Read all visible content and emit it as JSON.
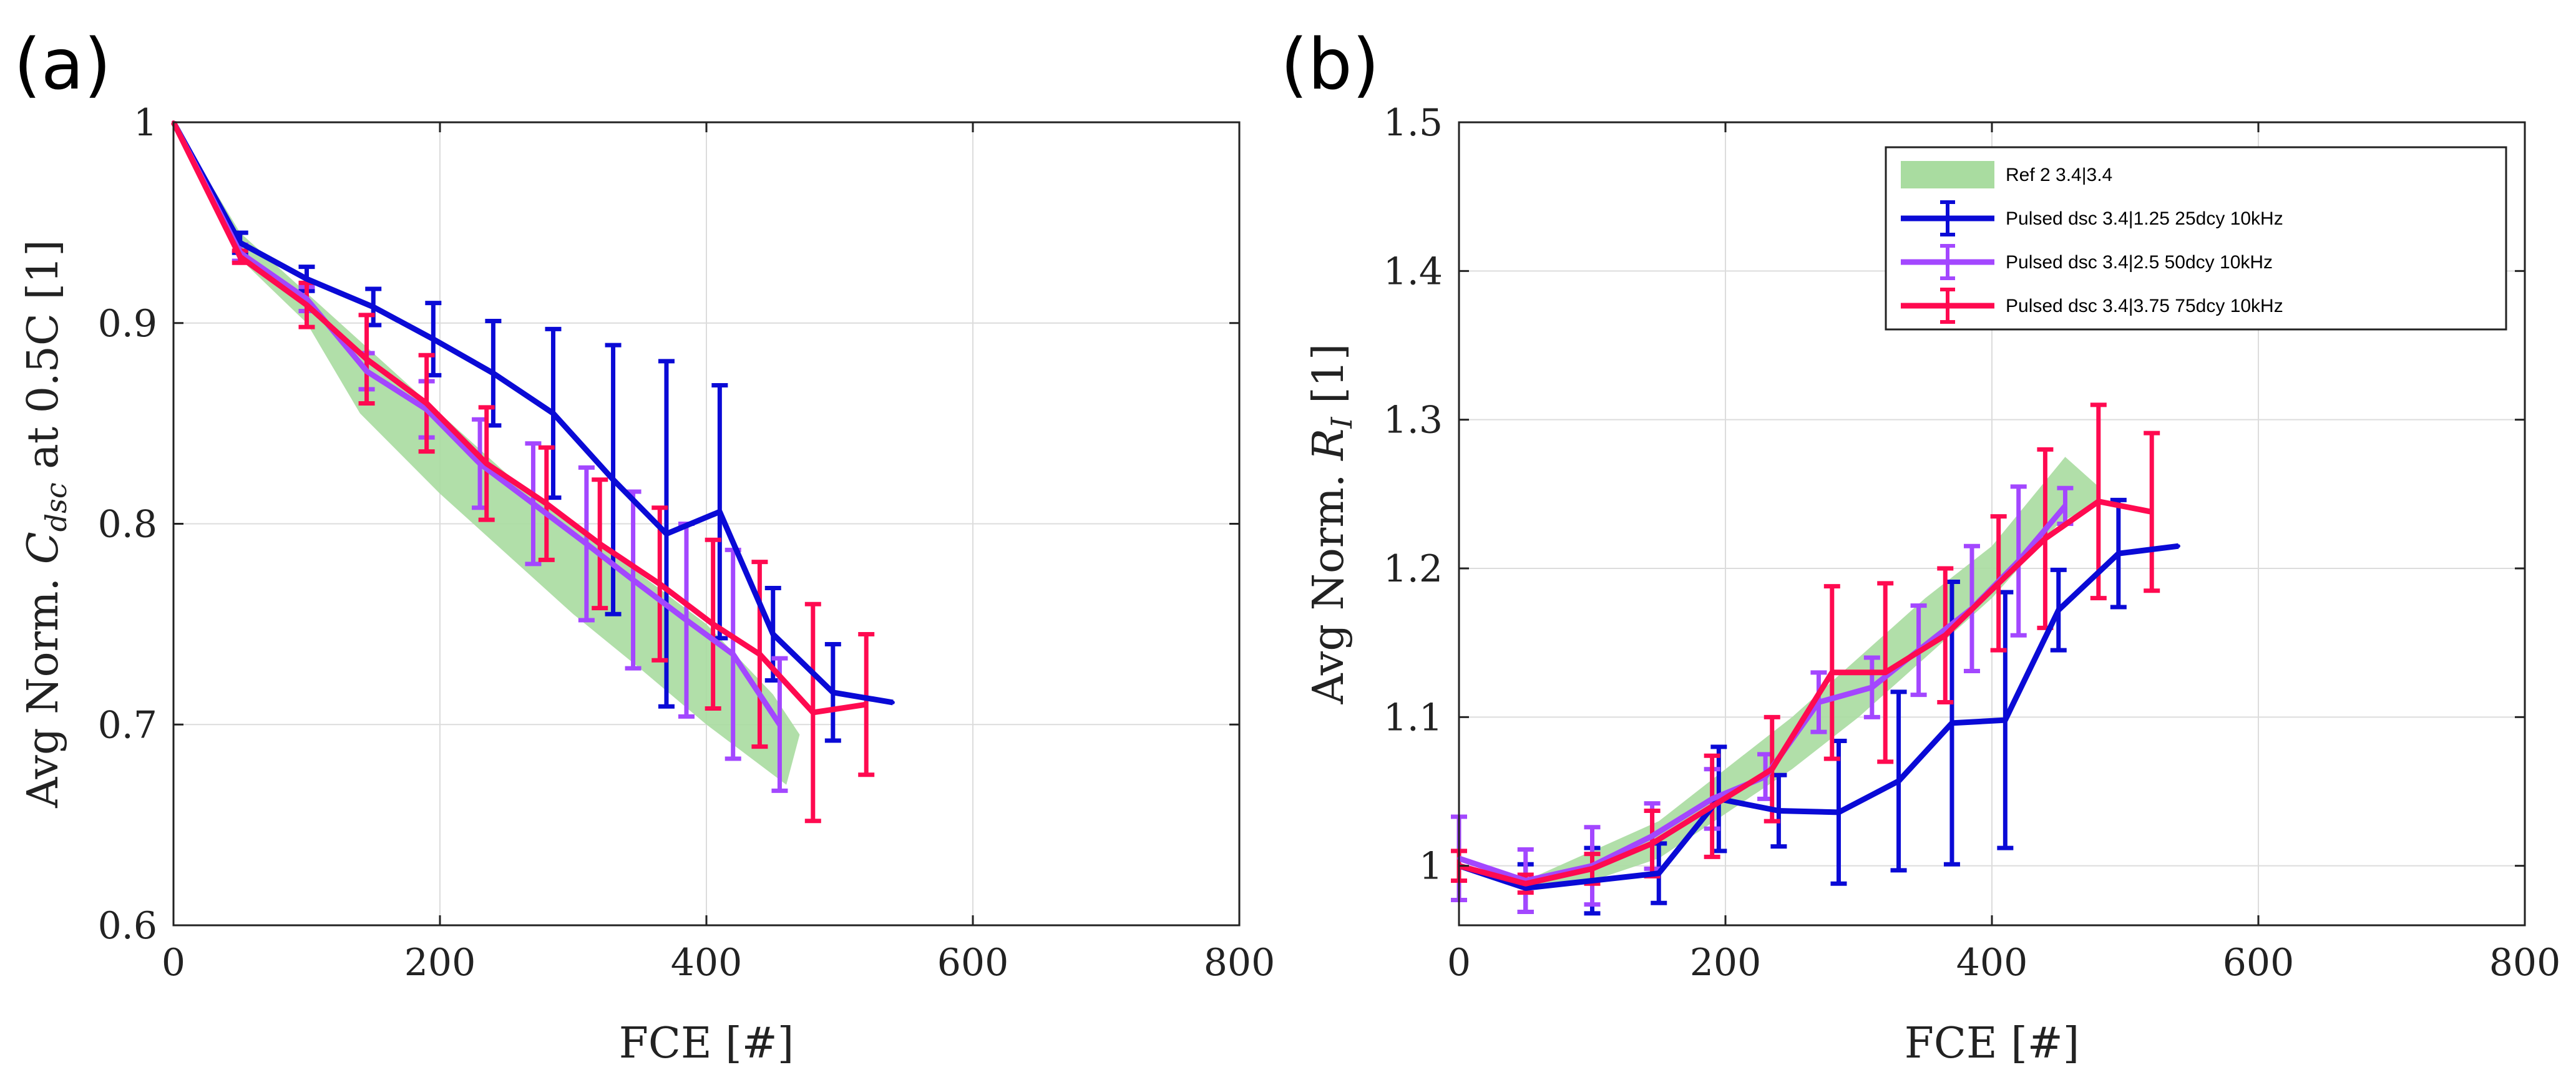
{
  "chart_data": [
    {
      "panel": "(a)",
      "type": "line",
      "xlabel": "FCE [#]",
      "ylabel": "Avg Norm. C_dsc at 0.5C [1]",
      "ylabel_parts": {
        "prefix": "Avg Norm. ",
        "symbol": "C",
        "subscript": "dsc",
        "suffix": " at 0.5C [1]"
      },
      "xlim": [
        0,
        800
      ],
      "ylim": [
        0.6,
        1.0
      ],
      "xticks": [
        0,
        200,
        400,
        600,
        800
      ],
      "xtick_labels": [
        "0",
        "200",
        "400",
        "600",
        "800"
      ],
      "yticks": [
        0.6,
        0.7,
        0.8,
        0.9,
        1.0
      ],
      "ytick_labels": [
        "0.6",
        "0.7",
        "0.8",
        "0.9",
        "1"
      ],
      "grid": true,
      "band": {
        "name": "Ref 2 3.4|3.4",
        "upper": [
          [
            0,
            1.0
          ],
          [
            50,
            0.945
          ],
          [
            100,
            0.915
          ],
          [
            150,
            0.885
          ],
          [
            200,
            0.855
          ],
          [
            250,
            0.825
          ],
          [
            300,
            0.8
          ],
          [
            350,
            0.775
          ],
          [
            400,
            0.75
          ],
          [
            450,
            0.715
          ],
          [
            470,
            0.695
          ]
        ],
        "lower": [
          [
            0,
            1.0
          ],
          [
            50,
            0.932
          ],
          [
            100,
            0.9
          ],
          [
            140,
            0.855
          ],
          [
            200,
            0.815
          ],
          [
            250,
            0.785
          ],
          [
            300,
            0.755
          ],
          [
            350,
            0.728
          ],
          [
            400,
            0.7
          ],
          [
            460,
            0.67
          ]
        ]
      },
      "series": [
        {
          "name": "Pulsed dsc 3.4|1.25 25dcy 10kHz",
          "x": [
            0,
            50,
            100,
            150,
            195,
            240,
            285,
            330,
            370,
            410,
            450,
            495,
            540
          ],
          "y": [
            1.0,
            0.94,
            0.922,
            0.908,
            0.892,
            0.875,
            0.855,
            0.822,
            0.795,
            0.806,
            0.745,
            0.716,
            0.711
          ],
          "err": [
            0,
            0.005,
            0.006,
            0.009,
            0.018,
            0.026,
            0.042,
            0.067,
            0.086,
            0.063,
            0.023,
            0.024,
            0
          ]
        },
        {
          "name": "Pulsed dsc 3.4|2.5 50dcy 10kHz",
          "x": [
            0,
            50,
            100,
            145,
            190,
            230,
            270,
            310,
            345,
            385,
            420,
            455
          ],
          "y": [
            1.0,
            0.935,
            0.912,
            0.876,
            0.857,
            0.83,
            0.81,
            0.79,
            0.772,
            0.752,
            0.735,
            0.7
          ],
          "err": [
            0,
            0.004,
            0.006,
            0.009,
            0.014,
            0.022,
            0.03,
            0.038,
            0.044,
            0.048,
            0.052,
            0.033
          ]
        },
        {
          "name": "Pulsed dsc 3.4|3.75 75dcy 10kHz",
          "x": [
            0,
            50,
            100,
            145,
            190,
            235,
            280,
            320,
            365,
            405,
            440,
            480,
            520
          ],
          "y": [
            1.0,
            0.933,
            0.909,
            0.882,
            0.86,
            0.83,
            0.81,
            0.79,
            0.77,
            0.75,
            0.735,
            0.706,
            0.71
          ],
          "err": [
            0,
            0.003,
            0.011,
            0.022,
            0.024,
            0.028,
            0.028,
            0.032,
            0.038,
            0.042,
            0.046,
            0.054,
            0.035
          ]
        }
      ]
    },
    {
      "panel": "(b)",
      "type": "line",
      "xlabel": "FCE [#]",
      "ylabel": "Avg Norm. R_I [1]",
      "ylabel_parts": {
        "prefix": "Avg Norm. ",
        "symbol": "R",
        "subscript": "I",
        "suffix": " [1]"
      },
      "xlim": [
        0,
        800
      ],
      "ylim": [
        0.96,
        1.5
      ],
      "xticks": [
        0,
        200,
        400,
        600,
        800
      ],
      "xtick_labels": [
        "0",
        "200",
        "400",
        "600",
        "800"
      ],
      "yticks": [
        1.0,
        1.1,
        1.2,
        1.3,
        1.4,
        1.5
      ],
      "ytick_labels": [
        "1",
        "1.1",
        "1.2",
        "1.3",
        "1.4",
        "1.5"
      ],
      "grid": true,
      "legend_position": "top-right",
      "band": {
        "name": "Ref 2 3.4|3.4",
        "upper": [
          [
            0,
            1.0
          ],
          [
            50,
            0.99
          ],
          [
            100,
            1.01
          ],
          [
            150,
            1.03
          ],
          [
            200,
            1.065
          ],
          [
            250,
            1.1
          ],
          [
            300,
            1.14
          ],
          [
            350,
            1.18
          ],
          [
            400,
            1.215
          ],
          [
            455,
            1.275
          ],
          [
            480,
            1.255
          ]
        ],
        "lower": [
          [
            0,
            1.0
          ],
          [
            50,
            0.985
          ],
          [
            100,
            0.99
          ],
          [
            150,
            1.005
          ],
          [
            200,
            1.035
          ],
          [
            250,
            1.065
          ],
          [
            300,
            1.1
          ],
          [
            350,
            1.14
          ],
          [
            400,
            1.18
          ],
          [
            450,
            1.23
          ],
          [
            480,
            1.245
          ]
        ]
      },
      "series": [
        {
          "name": "Pulsed dsc 3.4|1.25 25dcy 10kHz",
          "x": [
            0,
            50,
            100,
            150,
            195,
            240,
            285,
            330,
            370,
            410,
            450,
            495,
            540
          ],
          "y": [
            1.0,
            0.985,
            0.99,
            0.995,
            1.045,
            1.037,
            1.036,
            1.057,
            1.096,
            1.098,
            1.172,
            1.21,
            1.215
          ],
          "err": [
            0,
            0.016,
            0.022,
            0.02,
            0.035,
            0.024,
            0.048,
            0.06,
            0.095,
            0.086,
            0.027,
            0.036,
            0
          ]
        },
        {
          "name": "Pulsed dsc 3.4|2.5 50dcy 10kHz",
          "x": [
            0,
            50,
            100,
            145,
            190,
            230,
            270,
            310,
            345,
            385,
            420,
            455
          ],
          "y": [
            1.005,
            0.99,
            1.0,
            1.02,
            1.045,
            1.06,
            1.11,
            1.12,
            1.145,
            1.173,
            1.205,
            1.242
          ],
          "err": [
            0.028,
            0.021,
            0.026,
            0.022,
            0.02,
            0.015,
            0.02,
            0.02,
            0.03,
            0.042,
            0.05,
            0.012
          ]
        },
        {
          "name": "Pulsed dsc 3.4|3.75 75dcy 10kHz",
          "x": [
            0,
            50,
            100,
            145,
            190,
            235,
            280,
            320,
            365,
            405,
            440,
            480,
            520
          ],
          "y": [
            1.0,
            0.988,
            0.998,
            1.015,
            1.04,
            1.065,
            1.13,
            1.13,
            1.155,
            1.19,
            1.22,
            1.245,
            1.238
          ],
          "err": [
            0.01,
            0.006,
            0.01,
            0.022,
            0.034,
            0.035,
            0.058,
            0.06,
            0.045,
            0.045,
            0.06,
            0.065,
            0.053
          ]
        }
      ]
    }
  ],
  "legend": {
    "entries": [
      {
        "label": "Ref 2 3.4|3.4",
        "kind": "band"
      },
      {
        "label": "Pulsed dsc 3.4|1.25 25dcy 10kHz",
        "kind": "line"
      },
      {
        "label": "Pulsed dsc 3.4|2.5 50dcy 10kHz",
        "kind": "line"
      },
      {
        "label": "Pulsed dsc 3.4|3.75 75dcy 10kHz",
        "kind": "line"
      }
    ]
  },
  "colors": {
    "band": "#a9dca0",
    "series": [
      "#0a0ad6",
      "#a347ff",
      "#ff0a50"
    ],
    "frame": "#222222",
    "grid": "#dcdcdc"
  }
}
